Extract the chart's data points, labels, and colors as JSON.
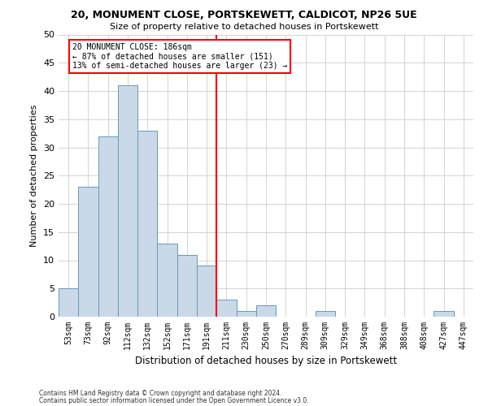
{
  "title1": "20, MONUMENT CLOSE, PORTSKEWETT, CALDICOT, NP26 5UE",
  "title2": "Size of property relative to detached houses in Portskewett",
  "xlabel": "Distribution of detached houses by size in Portskewett",
  "ylabel": "Number of detached properties",
  "categories": [
    "53sqm",
    "73sqm",
    "92sqm",
    "112sqm",
    "132sqm",
    "152sqm",
    "171sqm",
    "191sqm",
    "211sqm",
    "230sqm",
    "250sqm",
    "270sqm",
    "289sqm",
    "309sqm",
    "329sqm",
    "349sqm",
    "368sqm",
    "388sqm",
    "408sqm",
    "427sqm",
    "447sqm"
  ],
  "values": [
    5,
    23,
    32,
    41,
    33,
    13,
    11,
    9,
    3,
    1,
    2,
    0,
    0,
    1,
    0,
    0,
    0,
    0,
    0,
    1,
    0
  ],
  "bar_color": "#c9d9e8",
  "bar_edgecolor": "#6699bb",
  "vline_color": "red",
  "annotation_line1": "20 MONUMENT CLOSE: 186sqm",
  "annotation_line2": "← 87% of detached houses are smaller (151)",
  "annotation_line3": "13% of semi-detached houses are larger (23) →",
  "annotation_box_color": "red",
  "ylim": [
    0,
    50
  ],
  "yticks": [
    0,
    5,
    10,
    15,
    20,
    25,
    30,
    35,
    40,
    45,
    50
  ],
  "background_color": "#ffffff",
  "grid_color": "#cccccc",
  "footer1": "Contains HM Land Registry data © Crown copyright and database right 2024.",
  "footer2": "Contains public sector information licensed under the Open Government Licence v3.0."
}
